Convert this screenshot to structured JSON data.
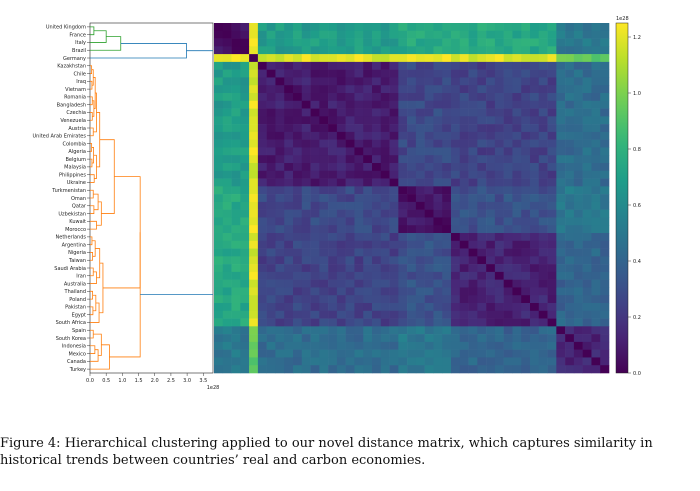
{
  "chart_data": {
    "type": "heatmap",
    "title": "",
    "countries": [
      "United Kingdom",
      "France",
      "Italy",
      "Brazil",
      "Germany",
      "Kazakhstan",
      "Chile",
      "Iraq",
      "Vietnam",
      "Romania",
      "Bangladesh",
      "Czechia",
      "Venezuela",
      "Austria",
      "United Arab Emirates",
      "Colombia",
      "Algeria",
      "Belgium",
      "Malaysia",
      "Philippines",
      "Ukraine",
      "Turkmenistan",
      "Oman",
      "Qatar",
      "Uzbekistan",
      "Kuwait",
      "Morocco",
      "Netherlands",
      "Argentina",
      "Nigeria",
      "Taiwan",
      "Saudi Arabia",
      "Iran",
      "Australia",
      "Thailand",
      "Poland",
      "Pakistan",
      "Egypt",
      "South Africa",
      "Spain",
      "South Korea",
      "Indonesia",
      "Mexico",
      "Canada",
      "Turkey"
    ],
    "dendrogram": {
      "xlim": [
        0,
        3.8
      ],
      "x_ticks": [
        "0.0",
        "0.5",
        "1.0",
        "1.5",
        "2.0",
        "2.5",
        "3.0",
        "3.5"
      ],
      "x_scale_label": "1e28",
      "cluster_colors": {
        "upper": "#2ca02c",
        "lower": "#ff7f0e",
        "root": "#1f77b4"
      }
    },
    "colorbar": {
      "colormap": "viridis",
      "range": [
        0.0,
        1.25
      ],
      "ticks": [
        "0.0",
        "0.2",
        "0.4",
        "0.6",
        "0.8",
        "1.0",
        "1.2"
      ],
      "scale_label": "1e28"
    }
  },
  "caption": {
    "text": "Figure 4: Hierarchical clustering applied to our novel distance matrix, which captures similarity in historical trends between countries’ real and carbon economies."
  }
}
